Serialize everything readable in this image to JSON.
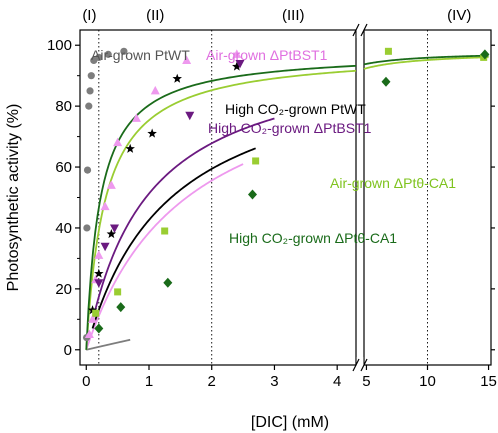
{
  "chart_data": {
    "type": "scatter",
    "title": "",
    "xlabel": "[DIC] (mM)",
    "ylabel": "Photosynthetic activity (%)",
    "ylim": [
      -5,
      105
    ],
    "yticks": [
      0,
      20,
      40,
      60,
      80,
      100
    ],
    "x_axis_broken": true,
    "x_segments": [
      {
        "range": [
          -0.1,
          4.3
        ],
        "ticks": [
          0,
          1,
          2,
          3,
          4
        ]
      },
      {
        "range": [
          4.8,
          15.2
        ],
        "ticks": [
          5,
          10,
          15
        ]
      }
    ],
    "grid": false,
    "legend": "labels placed next to curves",
    "phase_boundaries_x": [
      0.2,
      2.0,
      10.0
    ],
    "phases": [
      {
        "label": "(I)",
        "x_center": 0.05
      },
      {
        "label": "(II)",
        "x_center": 1.1
      },
      {
        "label": "(III)",
        "x_center": 3.3
      },
      {
        "label": "(IV)",
        "x_center": 12.6
      }
    ],
    "series": [
      {
        "name": "Air-grown PtWT",
        "color": "#7d7d7d",
        "marker": "circle",
        "points": [
          [
            0.005,
            4
          ],
          [
            0.01,
            40
          ],
          [
            0.02,
            59
          ],
          [
            0.04,
            80
          ],
          [
            0.06,
            85
          ],
          [
            0.08,
            90
          ],
          [
            0.12,
            95
          ],
          [
            0.2,
            96
          ],
          [
            0.35,
            97
          ],
          [
            0.6,
            98
          ]
        ],
        "fit": {
          "vmax": 97,
          "k": 20,
          "x_range": [
            0,
            0.7
          ]
        },
        "label_color": "#555555"
      },
      {
        "name": "Air-grown ΔPtBST1",
        "color": "#ee99ee",
        "marker": "triangle-up",
        "points": [
          [
            0.05,
            5
          ],
          [
            0.1,
            10
          ],
          [
            0.15,
            23
          ],
          [
            0.2,
            31
          ],
          [
            0.3,
            47
          ],
          [
            0.4,
            54
          ],
          [
            0.5,
            68
          ],
          [
            0.8,
            76
          ],
          [
            1.1,
            85
          ],
          [
            1.6,
            95
          ],
          [
            2.4,
            97
          ]
        ],
        "fit": {
          "vmax": 100,
          "k": 1.6,
          "x_range": [
            0,
            2.5
          ]
        },
        "label_color": "#e070e0"
      },
      {
        "name": "High CO₂-grown PtWT",
        "color": "#000000",
        "marker": "star",
        "points": [
          [
            0.1,
            13
          ],
          [
            0.2,
            25
          ],
          [
            0.4,
            38
          ],
          [
            0.7,
            66
          ],
          [
            1.05,
            71
          ],
          [
            1.45,
            89
          ],
          [
            2.4,
            93
          ]
        ],
        "fit": {
          "vmax": 98,
          "k": 1.3,
          "x_range": [
            0.1,
            2.7
          ]
        },
        "label_color": "#000000"
      },
      {
        "name": "High CO₂-grown ΔPtBST1",
        "color": "#6b1a80",
        "marker": "triangle-down",
        "points": [
          [
            0.2,
            22
          ],
          [
            0.3,
            34
          ],
          [
            0.45,
            40
          ],
          [
            1.65,
            77
          ],
          [
            2.45,
            94
          ]
        ],
        "fit": {
          "vmax": 100,
          "k": 0.95,
          "x_range": [
            0.1,
            3.0
          ]
        },
        "label_color": "#6b1a80"
      },
      {
        "name": "Air-grown ΔPtθ-CA1",
        "color": "#9acd32",
        "marker": "square",
        "points": [
          [
            0.15,
            12
          ],
          [
            0.5,
            19
          ],
          [
            1.25,
            39
          ],
          [
            2.7,
            62
          ],
          [
            6.8,
            98
          ],
          [
            14.6,
            96
          ]
        ],
        "fit": {
          "vmax": 98,
          "k": 0.3,
          "x_range": [
            0.0,
            15.0
          ]
        },
        "label_color": "#7fc31f"
      },
      {
        "name": "High CO₂-grown ΔPtθ-CA1",
        "color": "#1a6b1a",
        "marker": "diamond",
        "points": [
          [
            0.2,
            7
          ],
          [
            0.55,
            14
          ],
          [
            1.3,
            22
          ],
          [
            2.65,
            51
          ],
          [
            6.6,
            88
          ],
          [
            14.7,
            97
          ]
        ],
        "fit": {
          "vmax": 98,
          "k": 0.22,
          "x_range": [
            0.0,
            15.0
          ]
        },
        "label_color": "#1a6b1a"
      }
    ]
  }
}
